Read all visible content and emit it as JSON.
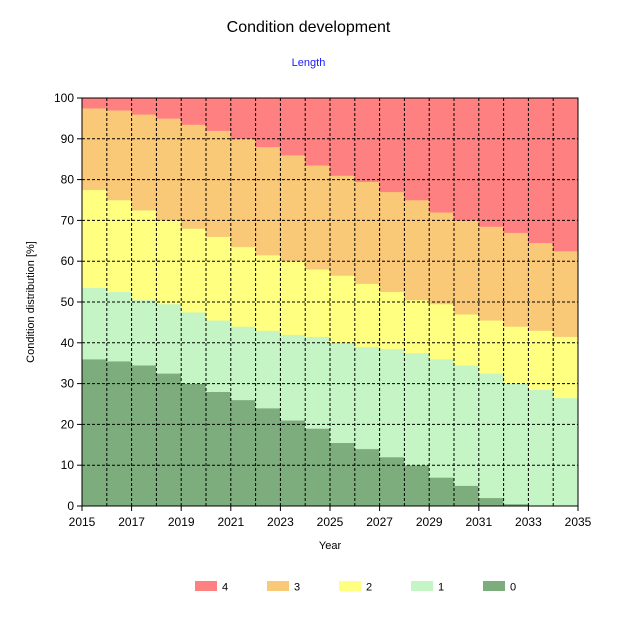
{
  "chart_data": {
    "type": "area",
    "stacked": true,
    "step": true,
    "title": "Condition development",
    "subtitle": "Length",
    "xlabel": "Year",
    "ylabel": "Condition distribution [%]",
    "xlim": [
      2015,
      2035
    ],
    "ylim": [
      0,
      100
    ],
    "x_ticks": [
      2015,
      2017,
      2019,
      2021,
      2023,
      2025,
      2027,
      2029,
      2031,
      2033,
      2035
    ],
    "y_ticks": [
      0,
      10,
      20,
      30,
      40,
      50,
      60,
      70,
      80,
      90,
      100
    ],
    "grid": true,
    "legend_position": "bottom",
    "x": [
      2015,
      2016,
      2017,
      2018,
      2019,
      2020,
      2021,
      2022,
      2023,
      2024,
      2025,
      2026,
      2027,
      2028,
      2029,
      2030,
      2031,
      2032,
      2033,
      2034
    ],
    "series": [
      {
        "name": "0",
        "color": "#7dad7d",
        "values": [
          36,
          35.5,
          34.5,
          32.5,
          30,
          28,
          26,
          24,
          21,
          19,
          15.5,
          14,
          12,
          10,
          7,
          5,
          2,
          0.5,
          0,
          0
        ]
      },
      {
        "name": "1",
        "color": "#c5f5c5",
        "values": [
          17.5,
          17,
          16,
          17,
          17.5,
          17.5,
          18,
          19,
          21,
          22.5,
          24.5,
          25,
          26.5,
          27.5,
          29,
          29.5,
          30.5,
          29.5,
          28.5,
          26.5
        ]
      },
      {
        "name": "2",
        "color": "#ffff80",
        "values": [
          24,
          22.5,
          22,
          20.5,
          20.5,
          20.5,
          19.5,
          18.5,
          18,
          16.5,
          16.5,
          15.5,
          14,
          13,
          13.5,
          12.5,
          13,
          14,
          14.5,
          15
        ]
      },
      {
        "name": "3",
        "color": "#fac978",
        "values": [
          20,
          22,
          23.5,
          25,
          25.5,
          26,
          26.5,
          26.5,
          26,
          25.5,
          24.5,
          25,
          24.5,
          24.5,
          22.5,
          23,
          23,
          23,
          21.5,
          21
        ]
      },
      {
        "name": "4",
        "color": "#ff8080",
        "values": [
          2.5,
          3,
          4,
          5,
          6.5,
          8,
          10,
          12,
          14,
          16.5,
          19,
          20.5,
          23,
          25,
          28,
          30,
          31.5,
          33,
          35.5,
          37.5
        ]
      }
    ],
    "legend_order": [
      "4",
      "3",
      "2",
      "1",
      "0"
    ]
  }
}
